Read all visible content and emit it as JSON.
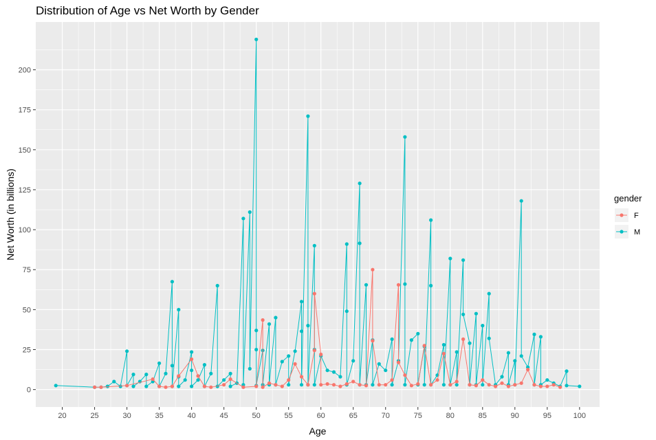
{
  "chart_data": {
    "type": "line",
    "title": "Distribution of Age vs Net Worth by Gender",
    "xlabel": "Age",
    "ylabel": "Net Worth (in billions)",
    "xlim": [
      15.9,
      103.1
    ],
    "ylim": [
      -10.9,
      229.9
    ],
    "x_ticks": [
      20,
      25,
      30,
      35,
      40,
      45,
      50,
      55,
      60,
      65,
      70,
      75,
      80,
      85,
      90,
      95,
      100
    ],
    "y_ticks": [
      0,
      25,
      50,
      75,
      100,
      125,
      150,
      175,
      200
    ],
    "grid": true,
    "legend": {
      "title": "gender",
      "position": "right"
    },
    "series": [
      {
        "name": "F",
        "color": "#F8766D",
        "x": [
          25,
          26,
          30,
          34,
          35,
          36,
          37,
          38,
          40,
          41,
          42,
          43,
          45,
          46,
          48,
          50,
          51,
          51,
          52,
          53,
          54,
          55,
          56,
          57,
          58,
          59,
          59,
          60,
          60,
          61,
          62,
          63,
          64,
          65,
          66,
          67,
          68,
          68,
          69,
          70,
          71,
          72,
          72,
          73,
          74,
          75,
          76,
          77,
          78,
          79,
          80,
          81,
          82,
          83,
          84,
          85,
          86,
          87,
          88,
          89,
          90,
          91,
          92,
          93,
          94,
          95,
          96,
          97
        ],
        "y": [
          1.5,
          1.5,
          2.5,
          6.5,
          2,
          1.5,
          2,
          8.5,
          19,
          8.5,
          2,
          1.5,
          3,
          6.5,
          1.5,
          2,
          43.5,
          1.5,
          4,
          3,
          2,
          6,
          16,
          8,
          3,
          24.5,
          60,
          22,
          3,
          3.5,
          3,
          2,
          3.5,
          5,
          3,
          2.5,
          75,
          30.5,
          3,
          3,
          6,
          65.5,
          17,
          9,
          2.5,
          3.5,
          27.5,
          3,
          6,
          22.5,
          3,
          5,
          31.5,
          3,
          2.5,
          6,
          3,
          2,
          4,
          2,
          3,
          4,
          12.5,
          3,
          2,
          2,
          3,
          1.5
        ]
      },
      {
        "name": "M",
        "color": "#00BFC4",
        "x": [
          19,
          25,
          26,
          27,
          28,
          29,
          30,
          30,
          31,
          31,
          32,
          33,
          33,
          34,
          35,
          35,
          36,
          37,
          37,
          37,
          38,
          38,
          38,
          39,
          40,
          40,
          40,
          41,
          42,
          42,
          43,
          44,
          44,
          45,
          46,
          46,
          47,
          48,
          48,
          49,
          49,
          50,
          50,
          50,
          50,
          51,
          51,
          52,
          52,
          53,
          53,
          54,
          55,
          55,
          56,
          57,
          57,
          57,
          58,
          58,
          58,
          59,
          59,
          59,
          60,
          61,
          62,
          63,
          64,
          64,
          64,
          65,
          66,
          66,
          66,
          67,
          67,
          68,
          68,
          69,
          70,
          71,
          71,
          72,
          73,
          73,
          73,
          74,
          75,
          75,
          76,
          76,
          77,
          77,
          77,
          78,
          79,
          79,
          80,
          80,
          81,
          81,
          82,
          82,
          83,
          83,
          84,
          84,
          85,
          85,
          86,
          86,
          87,
          88,
          89,
          89,
          90,
          90,
          91,
          91,
          92,
          93,
          93,
          94,
          94,
          95,
          96,
          97,
          98,
          98,
          100
        ],
        "y": [
          2.5,
          1.5,
          1.5,
          2,
          5,
          2,
          24,
          2.5,
          9.5,
          2,
          5,
          9.5,
          2,
          5,
          16.5,
          2,
          10,
          67.5,
          15,
          2,
          50,
          8,
          2,
          6,
          23.5,
          12,
          2,
          6,
          15.5,
          2,
          10,
          65,
          2,
          6,
          10,
          2,
          4,
          107,
          3,
          111,
          13,
          219,
          37,
          25,
          2.5,
          24.5,
          3,
          41,
          3,
          45,
          3,
          17.5,
          21,
          3,
          24,
          55,
          36.5,
          3,
          171,
          40,
          3,
          90,
          25,
          3,
          21,
          12,
          11,
          8,
          91,
          49,
          3,
          18,
          129,
          91.5,
          3,
          65.5,
          3,
          31,
          3,
          16,
          12,
          31.5,
          3,
          18,
          158,
          66,
          3,
          31,
          35,
          3,
          27,
          3,
          106,
          65,
          3,
          9,
          28,
          3,
          82,
          3,
          23.5,
          3,
          81,
          47,
          29,
          3,
          47.5,
          3,
          40,
          3,
          60,
          32,
          3,
          8,
          23,
          3,
          18,
          3,
          118,
          21,
          14,
          34.5,
          3,
          33,
          3,
          6,
          4,
          2,
          11.5,
          2.5,
          2
        ]
      }
    ]
  }
}
